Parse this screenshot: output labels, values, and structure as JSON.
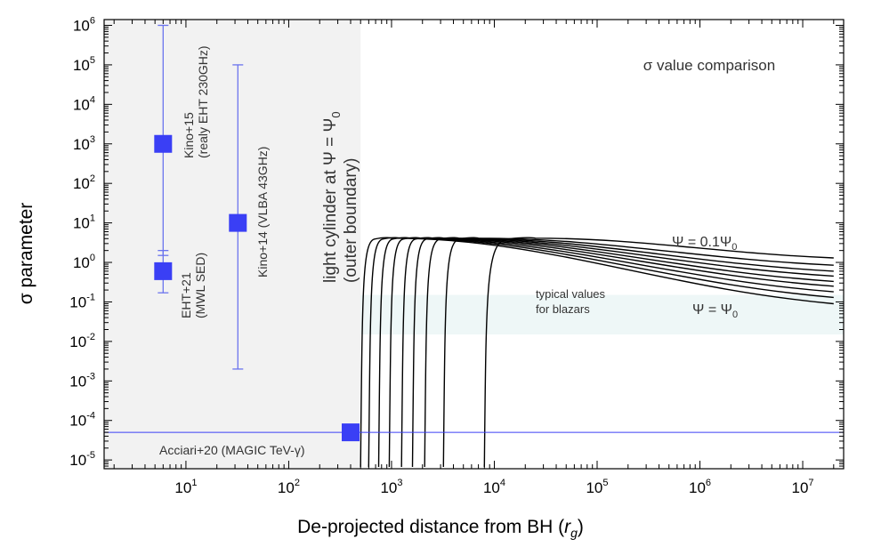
{
  "chart_data": {
    "type": "scatter",
    "title": "σ value comparison",
    "xlabel": "De-projected distance from BH (r_g)",
    "xlabel_parts": {
      "main": "De-projected distance from BH (",
      "var": "r",
      "sub": "g",
      "close": ")"
    },
    "ylabel": "σ parameter",
    "xscale": "log",
    "yscale": "log",
    "xlim": [
      1.6,
      25000000
    ],
    "ylim": [
      6e-06,
      1400000
    ],
    "x_ticks": [
      {
        "base": "10",
        "exp": "1"
      },
      {
        "base": "10",
        "exp": "2"
      },
      {
        "base": "10",
        "exp": "3"
      },
      {
        "base": "10",
        "exp": "4"
      },
      {
        "base": "10",
        "exp": "5"
      },
      {
        "base": "10",
        "exp": "6"
      },
      {
        "base": "10",
        "exp": "7"
      }
    ],
    "y_ticks": [
      {
        "base": "10",
        "exp": "-5"
      },
      {
        "base": "10",
        "exp": "-4"
      },
      {
        "base": "10",
        "exp": "-3"
      },
      {
        "base": "10",
        "exp": "-2"
      },
      {
        "base": "10",
        "exp": "-1"
      },
      {
        "base": "10",
        "exp": "0"
      },
      {
        "base": "10",
        "exp": "1"
      },
      {
        "base": "10",
        "exp": "2"
      },
      {
        "base": "10",
        "exp": "3"
      },
      {
        "base": "10",
        "exp": "4"
      },
      {
        "base": "10",
        "exp": "5"
      },
      {
        "base": "10",
        "exp": "6"
      }
    ],
    "shaded_region": {
      "x_max": 500
    },
    "blazar_band": {
      "x_min": 500,
      "y_range": [
        0.015,
        0.15
      ]
    },
    "light_cylinder": {
      "line1": "light cylinder at Ψ = Ψ",
      "line1_sub": "0",
      "line2": "(outer boundary)"
    },
    "points": [
      {
        "name": "Kino+15",
        "x": 6,
        "y": 1000,
        "y_err": [
          1.5,
          1000000
        ],
        "label_line1": "Kino+15",
        "label_line2": "(realy EHT 230GHz)"
      },
      {
        "name": "EHT+21",
        "x": 6,
        "y": 0.6,
        "y_err": [
          0.17,
          2.0
        ],
        "label_line1": "EHT+21",
        "label_line2": "(MWL SED)"
      },
      {
        "name": "Kino+14",
        "x": 32,
        "y": 10,
        "y_err": [
          0.002,
          100000
        ],
        "label_line1": "Kino+14 (VLBA 43GHz)"
      },
      {
        "name": "Acciari+20",
        "x": 400,
        "y": 5e-05,
        "hline": true,
        "label_line1": "Acciari+20 (MAGIC TeV-γ)"
      }
    ],
    "curves": {
      "start_x": [
        500,
        600,
        750,
        950,
        1250,
        1600,
        2100,
        3200,
        8000
      ],
      "peak_x": [
        1000,
        1200,
        1500,
        1900,
        2500,
        3200,
        4500,
        7000,
        25000
      ],
      "peak_y": 4.1,
      "end_x": 20000000,
      "end_y": [
        0.09,
        0.13,
        0.18,
        0.25,
        0.33,
        0.45,
        0.6,
        0.85,
        1.3
      ]
    },
    "annotations": {
      "psi_top": "Ψ = 0.1Ψ",
      "psi_top_sub": "0",
      "psi_bottom": "Ψ = Ψ",
      "psi_bottom_sub": "0",
      "blazar_line1": "typical values",
      "blazar_line2": "for blazars"
    }
  },
  "colors": {
    "marker": "#3a3ff5",
    "errorbar": "#6b74ee",
    "shade": "#f2f2f2",
    "band": "#eef7f7",
    "curve": "#000000"
  }
}
